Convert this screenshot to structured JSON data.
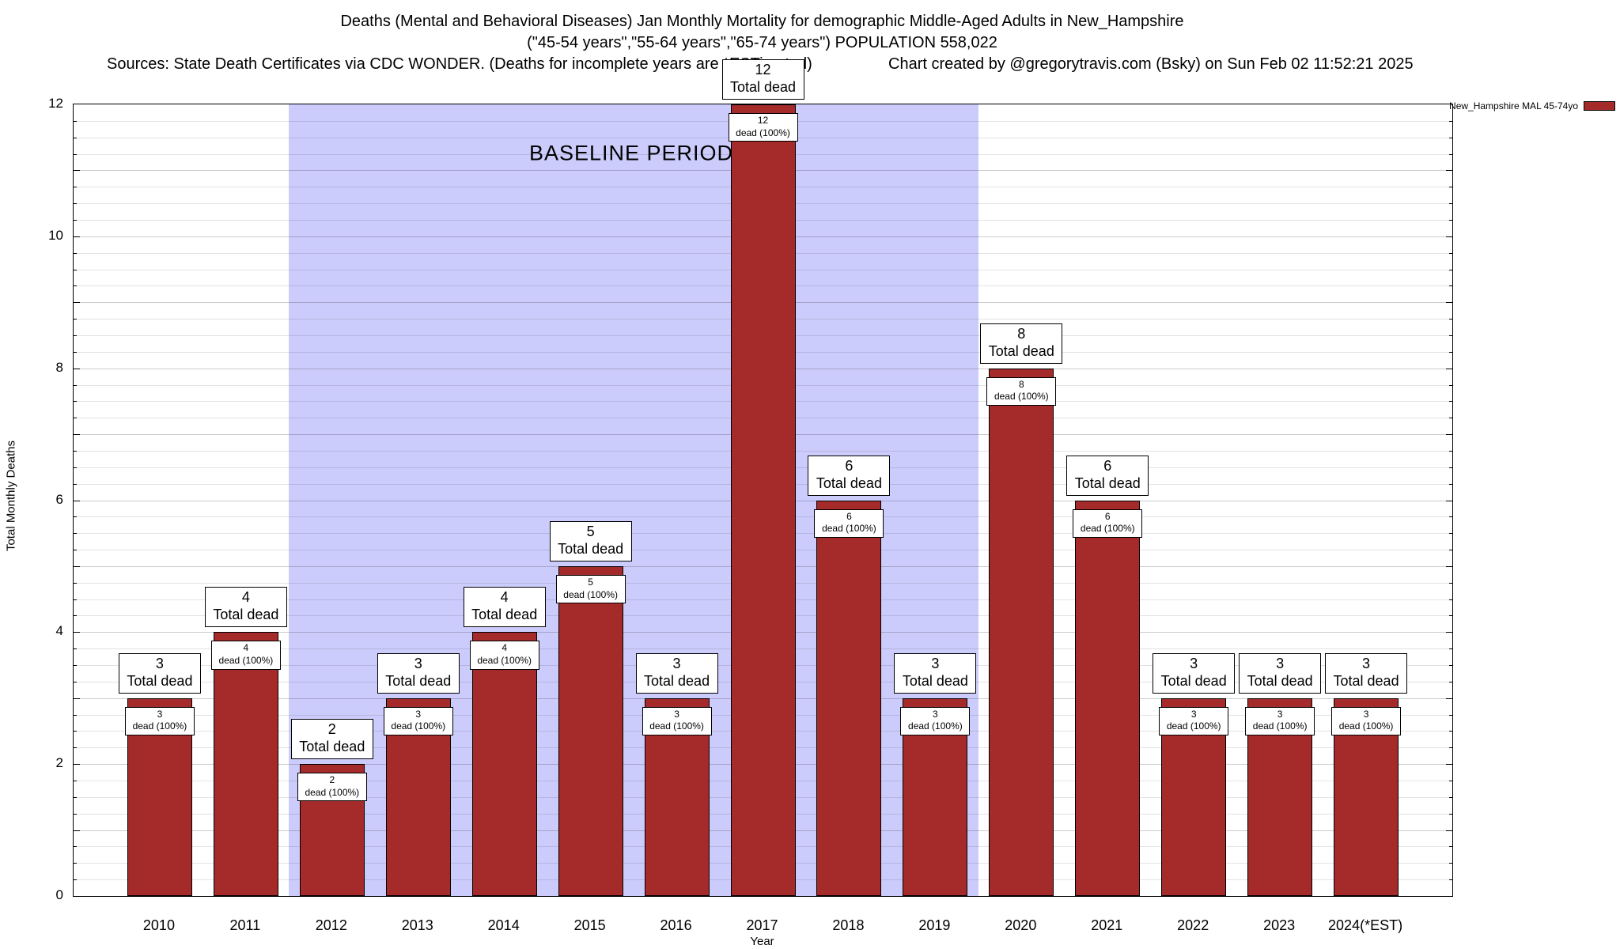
{
  "chart_data": {
    "type": "bar",
    "title": "Deaths (Mental and Behavioral Diseases) Jan Monthly Mortality for demographic Middle-Aged Adults in New_Hampshire",
    "subtitle": "(\"45-54 years\",\"55-64 years\",\"65-74 years\") POPULATION 558,022",
    "sources_note": "Sources: State Death Certificates via CDC WONDER. (Deaths for incomplete years are *ESTimated)",
    "credit_note": "Chart created by @gregorytravis.com (Bsky) on Sun Feb 02 11:52:21 2025",
    "categories": [
      "2010",
      "2011",
      "2012",
      "2013",
      "2014",
      "2015",
      "2016",
      "2017",
      "2018",
      "2019",
      "2020",
      "2021",
      "2022",
      "2023",
      "2024(*EST)"
    ],
    "values": [
      3,
      4,
      2,
      3,
      4,
      5,
      3,
      12,
      6,
      3,
      8,
      6,
      3,
      3,
      3
    ],
    "bar_top_label_suffix": "Total dead",
    "bar_inner_label_suffix": "dead (100%)",
    "xlabel": "Year",
    "ylabel": "Total Monthly Deaths",
    "ylim": [
      0,
      12
    ],
    "yticks": [
      0,
      2,
      4,
      6,
      8,
      10,
      12
    ],
    "grid": {
      "horizontal": true,
      "minor_interval": 0.25,
      "major_interval": 1
    },
    "bar_color": "#a52a2a",
    "legend": {
      "label": "New_Hampshire MAL 45-74yo",
      "position": "top-right"
    },
    "baseline_region": {
      "label": "BASELINE PERIOD",
      "start_category": "2012",
      "end_category": "2019",
      "color": "#ccccfc"
    }
  }
}
